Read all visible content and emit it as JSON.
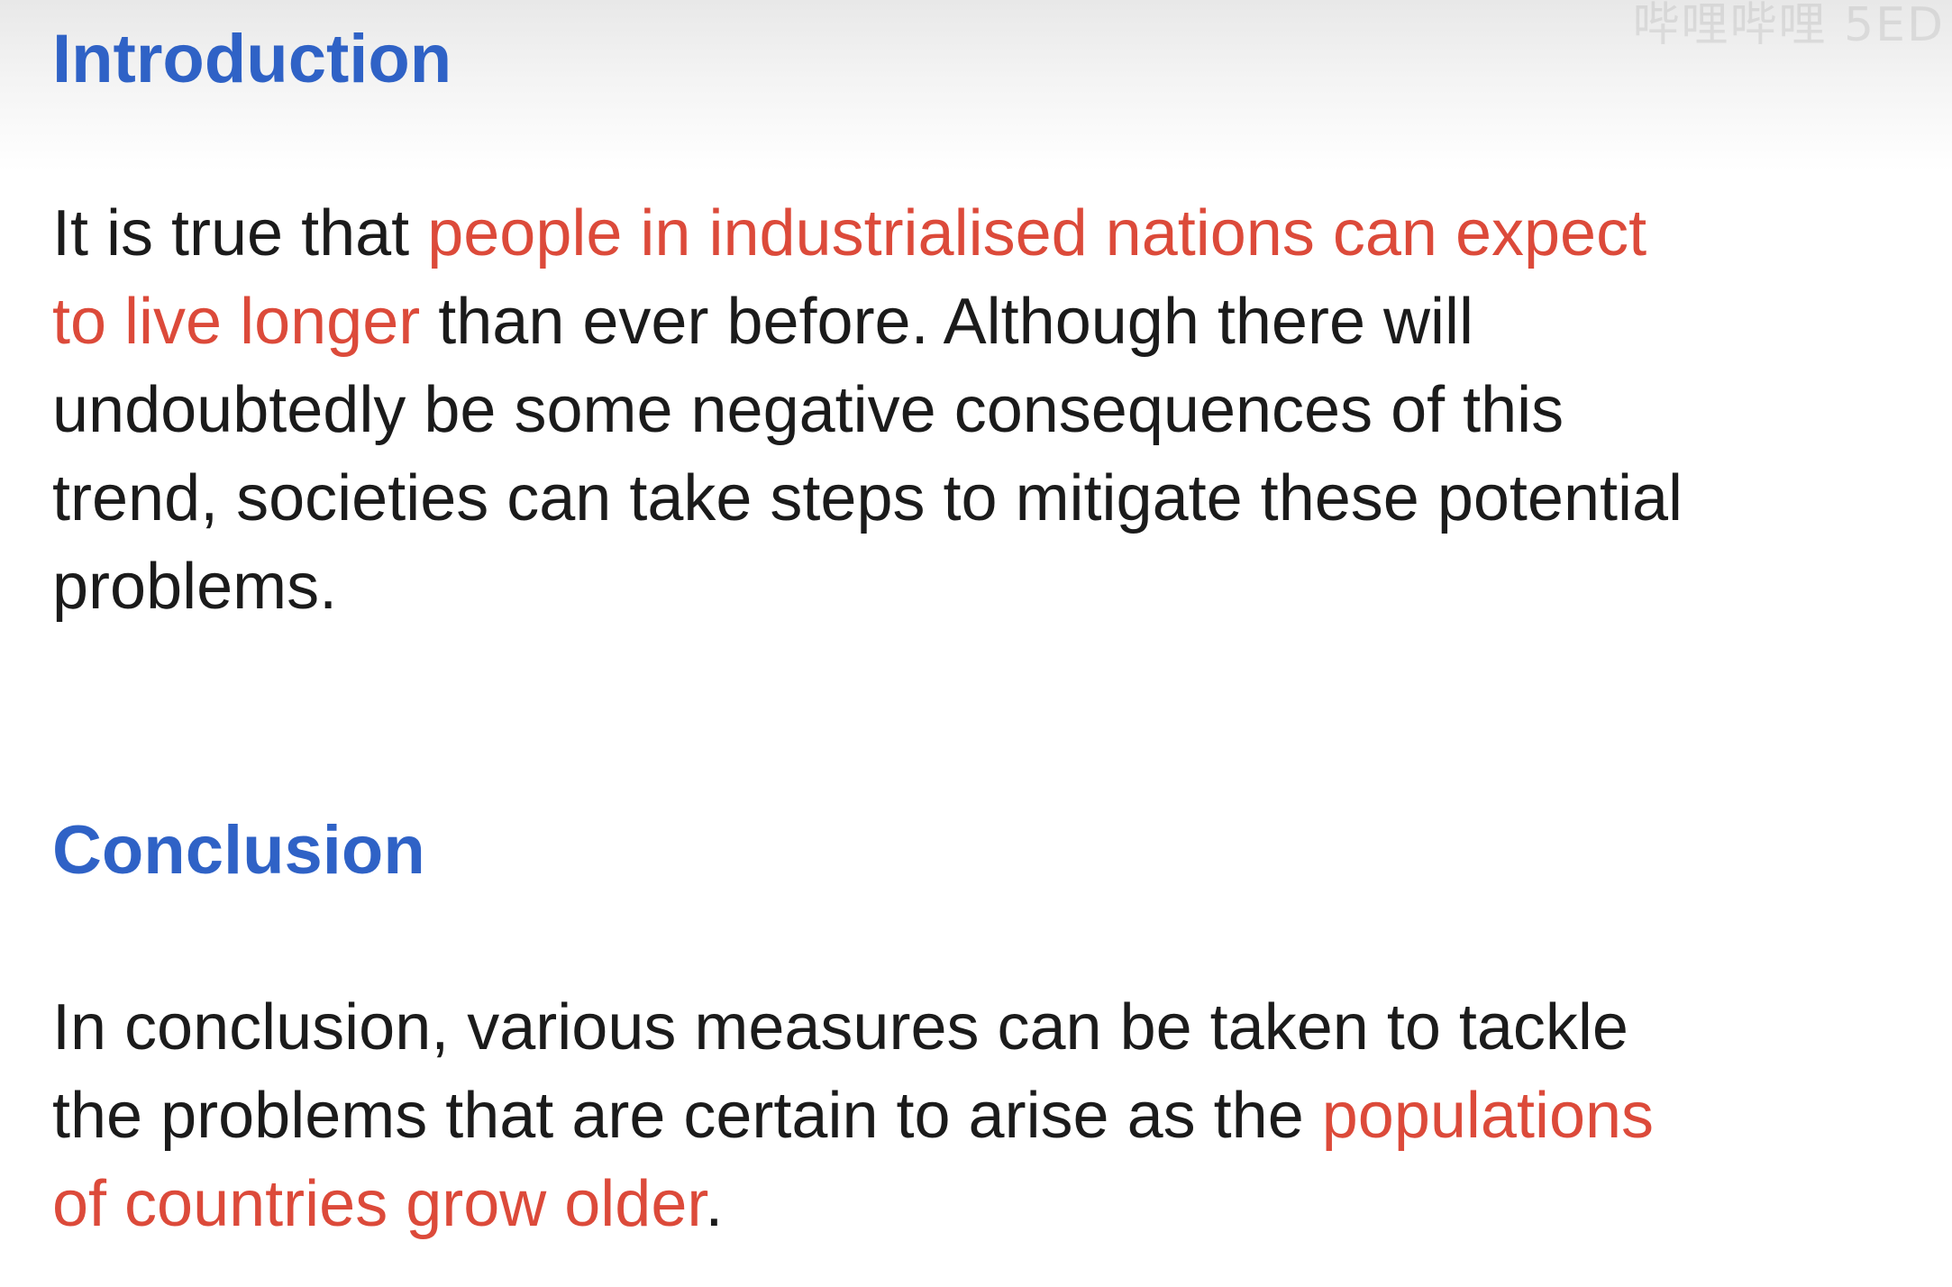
{
  "watermark": "哔哩哔哩 5ED",
  "highlight_color": "#dc4a3a",
  "heading_color": "#2f62c6",
  "introduction": {
    "heading": "Introduction",
    "lines": [
      {
        "a": "It is true that ",
        "b": "people in industrialised nations can expect"
      },
      {
        "a": "to live longer",
        "b": " than ever before. Although there will"
      },
      {
        "a": "undoubtedly be some negative consequences of this"
      },
      {
        "a": "trend, societies can take steps to mitigate these potential"
      },
      {
        "a": "problems."
      }
    ]
  },
  "conclusion": {
    "heading": "Conclusion",
    "lines": [
      {
        "a": "In conclusion, various measures can be taken to tackle"
      },
      {
        "a": "the problems that are certain to arise as the ",
        "b": "populations"
      },
      {
        "a": "of countries grow older",
        "b": "."
      }
    ]
  }
}
